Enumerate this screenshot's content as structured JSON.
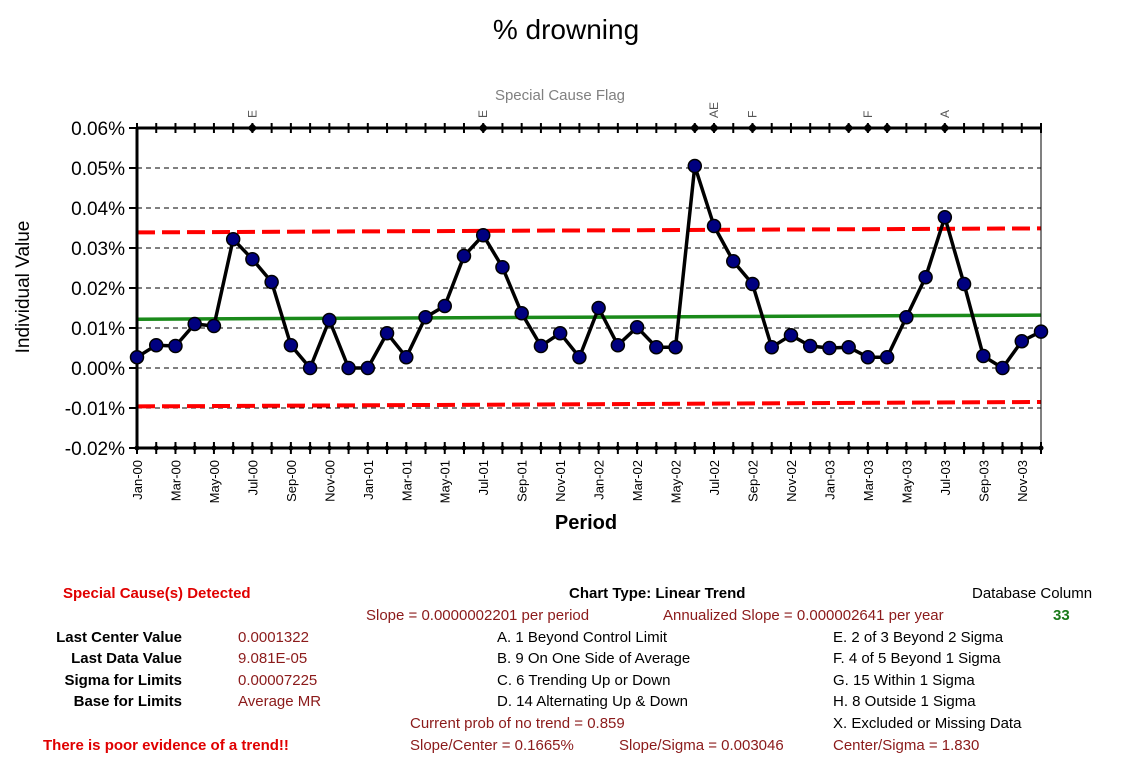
{
  "chart_data": {
    "type": "line",
    "title": "% drowning",
    "flag_title": "Special Cause Flag",
    "xlabel": "Period",
    "ylabel": "Individual Value",
    "ylim": [
      -0.0002,
      0.0006
    ],
    "yticks": [
      -0.0002,
      -0.0001,
      0,
      0.0001,
      0.0002,
      0.0003,
      0.0004,
      0.0005,
      0.0006
    ],
    "ytick_labels": [
      "-0.02%",
      "-0.01%",
      "0.00%",
      "0.01%",
      "0.02%",
      "0.03%",
      "0.04%",
      "0.05%",
      "0.06%"
    ],
    "x": [
      "Jan-00",
      "Feb-00",
      "Mar-00",
      "Apr-00",
      "May-00",
      "Jun-00",
      "Jul-00",
      "Aug-00",
      "Sep-00",
      "Oct-00",
      "Nov-00",
      "Dec-00",
      "Jan-01",
      "Feb-01",
      "Mar-01",
      "Apr-01",
      "May-01",
      "Jun-01",
      "Jul-01",
      "Aug-01",
      "Sep-01",
      "Oct-01",
      "Nov-01",
      "Dec-01",
      "Jan-02",
      "Feb-02",
      "Mar-02",
      "Apr-02",
      "May-02",
      "Jun-02",
      "Jul-02",
      "Aug-02",
      "Sep-02",
      "Oct-02",
      "Nov-02",
      "Dec-02",
      "Jan-03",
      "Feb-03",
      "Mar-03",
      "Apr-03",
      "May-03",
      "Jun-03",
      "Jul-03",
      "Aug-03",
      "Sep-03",
      "Oct-03",
      "Nov-03",
      "Dec-03"
    ],
    "xtick_labels": [
      "Jan-00",
      "Mar-00",
      "May-00",
      "Jul-00",
      "Sep-00",
      "Nov-00",
      "Jan-01",
      "Mar-01",
      "May-01",
      "Jul-01",
      "Sep-01",
      "Nov-01",
      "Jan-02",
      "Mar-02",
      "May-02",
      "Jul-02",
      "Sep-02",
      "Nov-02",
      "Jan-03",
      "Mar-03",
      "May-03",
      "Jul-03",
      "Sep-03",
      "Nov-03"
    ],
    "series": [
      {
        "values": [
          2.7e-05,
          5.7e-05,
          5.5e-05,
          0.00011,
          0.000105,
          0.000322,
          0.000272,
          0.000215,
          5.7e-05,
          0.0,
          0.00012,
          0.0,
          0.0,
          8.7e-05,
          2.7e-05,
          0.000127,
          0.000155,
          0.00028,
          0.000332,
          0.000252,
          0.000137,
          5.5e-05,
          8.7e-05,
          2.7e-05,
          0.00015,
          5.7e-05,
          0.000102,
          5.2e-05,
          5.2e-05,
          0.000505,
          0.000355,
          0.000267,
          0.00021,
          5.2e-05,
          8.2e-05,
          5.5e-05,
          5e-05,
          5.2e-05,
          2.7e-05,
          2.7e-05,
          0.000127,
          0.000227,
          0.000377,
          0.00021,
          3e-05,
          0.0,
          6.7e-05,
          9.1e-05
        ],
        "color": "#000080"
      }
    ],
    "center_line": {
      "start": 0.000122,
      "end": 0.0001322,
      "color": "#1a8a1a"
    },
    "ucl": {
      "start": 0.000339,
      "end": 0.000349,
      "color": "#ff0000"
    },
    "lcl": {
      "start": -9.6e-05,
      "end": -8.5e-05,
      "color": "#ff0000"
    },
    "flags": [
      {
        "month": "Jul-00",
        "label": "E"
      },
      {
        "month": "Jul-01",
        "label": "E"
      },
      {
        "month": "Jun-02",
        "label": ""
      },
      {
        "month": "Jul-02",
        "label": "AE"
      },
      {
        "month": "Sep-02",
        "label": "F"
      },
      {
        "month": "Feb-03",
        "label": ""
      },
      {
        "month": "Mar-03",
        "label": "F"
      },
      {
        "month": "Apr-03",
        "label": ""
      },
      {
        "month": "Jul-03",
        "label": "A"
      }
    ],
    "grid": "horizontal dashed"
  },
  "footer": {
    "special_cause": "Special Cause(s) Detected",
    "chart_type": "Chart Type:   Linear Trend",
    "database_column_label": "Database Column",
    "database_column_value": "33",
    "slope": "Slope = 0.0000002201 per period",
    "annualized_slope": "Annualized Slope = 0.000002641 per year",
    "stats": [
      {
        "label": "Last Center Value",
        "value": "0.0001322"
      },
      {
        "label": "Last Data Value",
        "value": "9.081E-05"
      },
      {
        "label": "Sigma for Limits",
        "value": "0.00007225"
      },
      {
        "label": "Base for Limits",
        "value": "Average MR"
      }
    ],
    "rules_left": [
      "A. 1 Beyond Control Limit",
      "B. 9 On One Side of Average",
      "C. 6 Trending Up or Down",
      "D. 14 Alternating  Up & Down"
    ],
    "rules_right": [
      "E.  2 of 3 Beyond 2 Sigma",
      "F.  4 of 5 Beyond 1 Sigma",
      "G.  15 Within 1 Sigma",
      "H.  8 Outside 1 Sigma",
      "X.  Excluded or Missing Data"
    ],
    "prob_no_trend": "Current prob of no trend = 0.859",
    "trend_note": "There is poor evidence of a trend!!",
    "slope_center": "Slope/Center = 0.1665%",
    "slope_sigma": "Slope/Sigma = 0.003046",
    "center_sigma": "Center/Sigma = 1.830"
  }
}
